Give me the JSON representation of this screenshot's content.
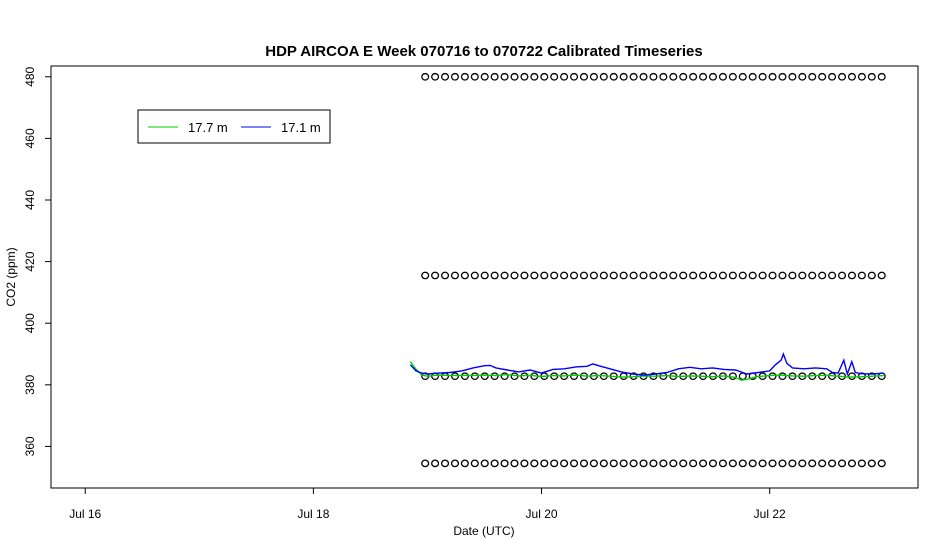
{
  "chart_data": {
    "type": "line",
    "title": "HDP AIRCOA E  Week 070716 to 070722  Calibrated Timeseries",
    "xlabel": "Date (UTC)",
    "ylabel": "CO2 (ppm)",
    "xlim": [
      15.7,
      23.3
    ],
    "ylim": [
      346.5,
      483.5
    ],
    "x_ticks": [
      {
        "value": 16,
        "label": "Jul 16"
      },
      {
        "value": 18,
        "label": "Jul 18"
      },
      {
        "value": 20,
        "label": "Jul 20"
      },
      {
        "value": 22,
        "label": "Jul 22"
      }
    ],
    "y_ticks": [
      {
        "value": 360,
        "label": "360"
      },
      {
        "value": 380,
        "label": "380"
      },
      {
        "value": 400,
        "label": "400"
      },
      {
        "value": 420,
        "label": "420"
      },
      {
        "value": 440,
        "label": "440"
      },
      {
        "value": 460,
        "label": "460"
      },
      {
        "value": 480,
        "label": "480"
      }
    ],
    "legend": {
      "placement": "top-left",
      "entries": [
        {
          "name": "17.7 m",
          "color": "#00cc00"
        },
        {
          "name": "17.1 m",
          "color": "#0000ff"
        }
      ]
    },
    "series": [
      {
        "name": "17.7 m",
        "color": "#00cc00",
        "points": [
          [
            18.85,
            387.5
          ],
          [
            18.9,
            385.0
          ],
          [
            18.95,
            383.2
          ],
          [
            19.0,
            382.8
          ],
          [
            19.1,
            383.2
          ],
          [
            19.2,
            383.0
          ],
          [
            19.3,
            383.1
          ],
          [
            19.4,
            383.0
          ],
          [
            19.5,
            383.2
          ],
          [
            19.6,
            383.0
          ],
          [
            19.7,
            383.3
          ],
          [
            19.8,
            382.9
          ],
          [
            19.9,
            383.1
          ],
          [
            20.0,
            382.7
          ],
          [
            20.1,
            383.0
          ],
          [
            20.2,
            382.9
          ],
          [
            20.3,
            383.2
          ],
          [
            20.4,
            382.8
          ],
          [
            20.5,
            383.0
          ],
          [
            20.6,
            382.8
          ],
          [
            20.7,
            382.5
          ],
          [
            20.8,
            382.6
          ],
          [
            20.9,
            382.9
          ],
          [
            21.0,
            382.8
          ],
          [
            21.1,
            383.0
          ],
          [
            21.2,
            382.7
          ],
          [
            21.3,
            382.9
          ],
          [
            21.4,
            382.8
          ],
          [
            21.5,
            382.6
          ],
          [
            21.6,
            382.9
          ],
          [
            21.7,
            382.4
          ],
          [
            21.75,
            381.5
          ],
          [
            21.8,
            381.8
          ],
          [
            21.9,
            382.7
          ],
          [
            22.0,
            383.0
          ],
          [
            22.1,
            383.2
          ],
          [
            22.2,
            382.9
          ],
          [
            22.3,
            382.8
          ],
          [
            22.4,
            383.0
          ],
          [
            22.5,
            383.1
          ],
          [
            22.6,
            382.8
          ],
          [
            22.7,
            382.5
          ],
          [
            22.8,
            382.6
          ],
          [
            22.9,
            382.8
          ],
          [
            23.0,
            383.0
          ]
        ]
      },
      {
        "name": "17.1 m",
        "color": "#0000ff",
        "points": [
          [
            18.85,
            386.5
          ],
          [
            18.9,
            384.5
          ],
          [
            18.95,
            383.8
          ],
          [
            19.0,
            383.5
          ],
          [
            19.1,
            383.8
          ],
          [
            19.2,
            384.0
          ],
          [
            19.3,
            384.5
          ],
          [
            19.4,
            385.5
          ],
          [
            19.5,
            386.2
          ],
          [
            19.55,
            386.3
          ],
          [
            19.6,
            385.5
          ],
          [
            19.7,
            384.8
          ],
          [
            19.8,
            384.2
          ],
          [
            19.9,
            384.8
          ],
          [
            20.0,
            383.8
          ],
          [
            20.1,
            385.0
          ],
          [
            20.2,
            385.2
          ],
          [
            20.3,
            385.8
          ],
          [
            20.4,
            386.0
          ],
          [
            20.45,
            386.8
          ],
          [
            20.5,
            386.2
          ],
          [
            20.6,
            385.2
          ],
          [
            20.7,
            384.2
          ],
          [
            20.8,
            383.5
          ],
          [
            20.9,
            383.2
          ],
          [
            21.0,
            383.5
          ],
          [
            21.1,
            384.0
          ],
          [
            21.2,
            385.2
          ],
          [
            21.3,
            385.7
          ],
          [
            21.4,
            385.2
          ],
          [
            21.5,
            385.5
          ],
          [
            21.6,
            385.0
          ],
          [
            21.7,
            384.8
          ],
          [
            21.8,
            383.5
          ],
          [
            21.9,
            384.0
          ],
          [
            22.0,
            384.5
          ],
          [
            22.05,
            386.5
          ],
          [
            22.1,
            388.0
          ],
          [
            22.12,
            390.0
          ],
          [
            22.15,
            387.0
          ],
          [
            22.2,
            385.5
          ],
          [
            22.3,
            385.2
          ],
          [
            22.4,
            385.5
          ],
          [
            22.5,
            385.2
          ],
          [
            22.55,
            384.0
          ],
          [
            22.6,
            383.8
          ],
          [
            22.65,
            388.0
          ],
          [
            22.68,
            383.5
          ],
          [
            22.72,
            387.5
          ],
          [
            22.75,
            384.0
          ],
          [
            22.8,
            383.6
          ],
          [
            22.9,
            383.5
          ],
          [
            23.0,
            383.8
          ]
        ]
      }
    ],
    "markers": {
      "shape": "open-circle",
      "color": "#000000",
      "levels": [
        480,
        415.5,
        382.8,
        354.5
      ],
      "x_start": 18.98,
      "x_end": 23.0,
      "step": 0.087
    }
  }
}
